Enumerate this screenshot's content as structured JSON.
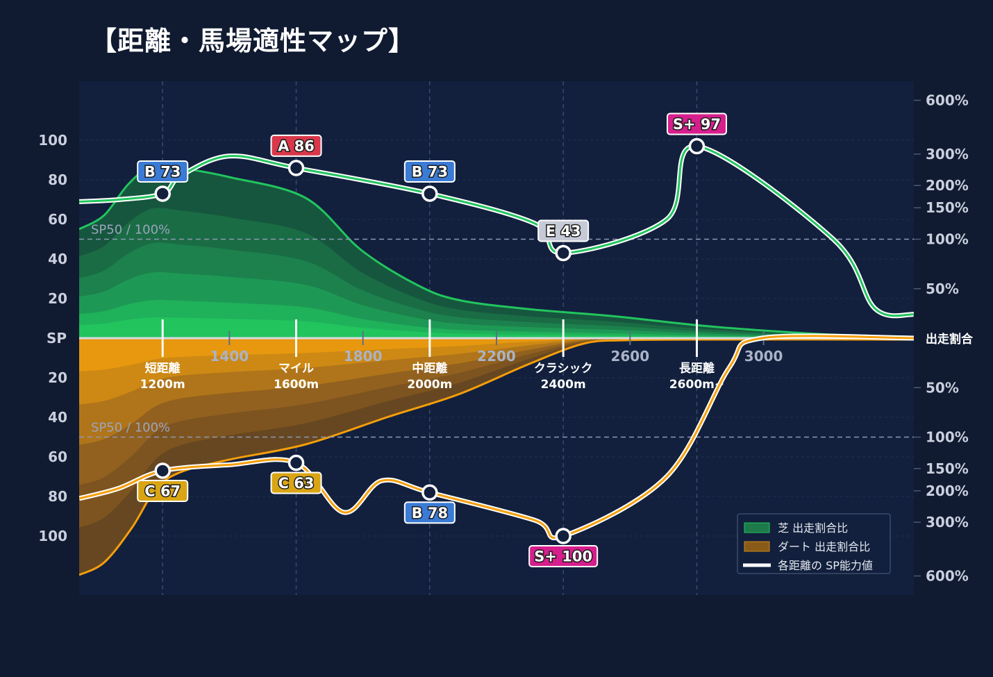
{
  "title": "【距離・馬場適性マップ】",
  "chart_data": {
    "type": "area",
    "x_ticks": [
      1400,
      1800,
      2200,
      2600,
      3000
    ],
    "categories": [
      {
        "x": 1200,
        "line1": "短距離",
        "line2": "1200m"
      },
      {
        "x": 1600,
        "line1": "マイル",
        "line2": "1600m"
      },
      {
        "x": 2000,
        "line1": "中距離",
        "line2": "2000m"
      },
      {
        "x": 2400,
        "line1": "クラシック",
        "line2": "2400m"
      },
      {
        "x": 2800,
        "line1": "長距離",
        "line2": "2600m~"
      }
    ],
    "left_axis": {
      "center_label": "SP",
      "ticks": [
        20,
        40,
        60,
        80,
        100
      ]
    },
    "right_axis": {
      "center_label": "出走割合",
      "top_ticks": [
        "600%",
        "300%",
        "200%",
        "150%",
        "100%",
        "50%"
      ],
      "bottom_ticks": [
        "50%",
        "100%",
        "150%",
        "200%",
        "300%",
        "600%"
      ]
    },
    "reference_label": "SP50 / 100%",
    "turf": {
      "sp_points": [
        {
          "x": 1200,
          "sp": 73,
          "grade": "B 73"
        },
        {
          "x": 1600,
          "sp": 86,
          "grade": "A 86"
        },
        {
          "x": 2000,
          "sp": 73,
          "grade": "B 73"
        },
        {
          "x": 2400,
          "sp": 43,
          "grade": "E 43"
        },
        {
          "x": 2800,
          "sp": 97,
          "grade": "S+ 97"
        }
      ]
    },
    "dirt": {
      "sp_points": [
        {
          "x": 1200,
          "sp": 67,
          "grade": "C 67"
        },
        {
          "x": 1600,
          "sp": 63,
          "grade": "C 63"
        },
        {
          "x": 2000,
          "sp": 78,
          "grade": "B 78"
        },
        {
          "x": 2400,
          "sp": 100,
          "grade": "S+ 100"
        }
      ]
    },
    "legend": {
      "position": "bottom-right",
      "items": [
        {
          "label": "芝 出走割合比",
          "color": "#1d7a4a"
        },
        {
          "label": "ダート 出走割合比",
          "color": "#8a5a18"
        },
        {
          "label": "各距離の SP能力値",
          "color": "#ffffff"
        }
      ]
    },
    "colors": {
      "turf": "#22c55e",
      "dirt": "#f59e0b",
      "grade_S": "#d61f8c",
      "grade_A": "#d9384a",
      "grade_B": "#3a7bd5",
      "grade_C": "#d9a514",
      "grade_E": "#c5cad6"
    }
  }
}
